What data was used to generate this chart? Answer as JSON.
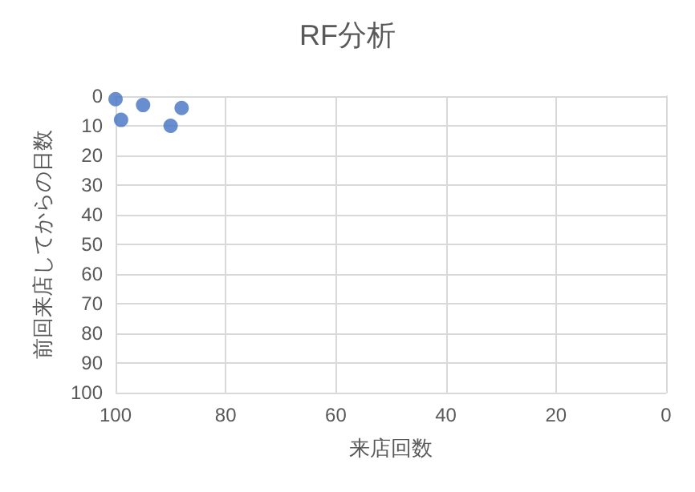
{
  "chart_data": {
    "type": "scatter",
    "title": "RF分析",
    "xlabel": "来店回数",
    "ylabel": "前回来店してからの日数",
    "x": [
      100,
      99,
      95,
      90,
      88
    ],
    "series": [
      {
        "color": "#4472c4",
        "values": [
          1,
          8,
          3,
          10,
          4
        ]
      }
    ],
    "xlim": [
      100,
      0
    ],
    "xticks": [
      100,
      80,
      60,
      40,
      20,
      0
    ],
    "ylim": [
      100,
      0
    ],
    "yticks": [
      0,
      10,
      20,
      30,
      40,
      50,
      60,
      70,
      80,
      90,
      100
    ],
    "grid": true,
    "marker": "circle"
  }
}
